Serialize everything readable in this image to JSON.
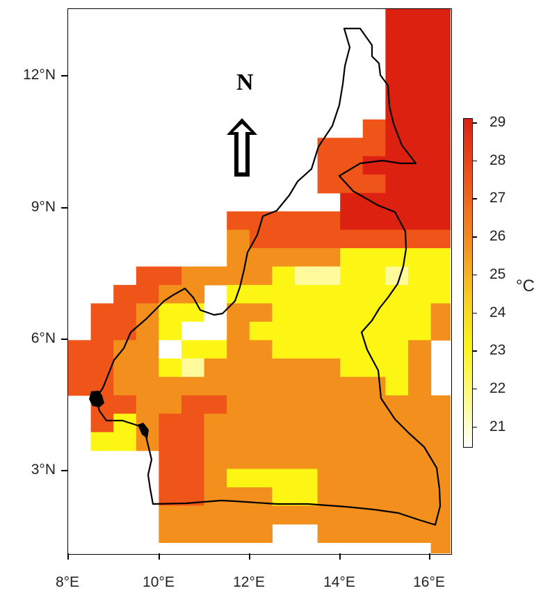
{
  "map": {
    "north_label": "N",
    "x_ticks": [
      "8°E",
      "10°E",
      "12°E",
      "14°E",
      "16°E"
    ],
    "y_ticks": [
      "12°N",
      "9°N",
      "6°N",
      "3°N"
    ],
    "colorbar": {
      "unit": "°C",
      "min": 20.5,
      "max": 29,
      "labels": [
        "29",
        "28",
        "27",
        "26",
        "25",
        "24",
        "23",
        "22",
        "21"
      ],
      "colors": [
        "#ffffff",
        "#fffb9c",
        "#fdf615",
        "#f9cf1c",
        "#f3901d",
        "#ef5418",
        "#dd2110"
      ]
    }
  }
}
